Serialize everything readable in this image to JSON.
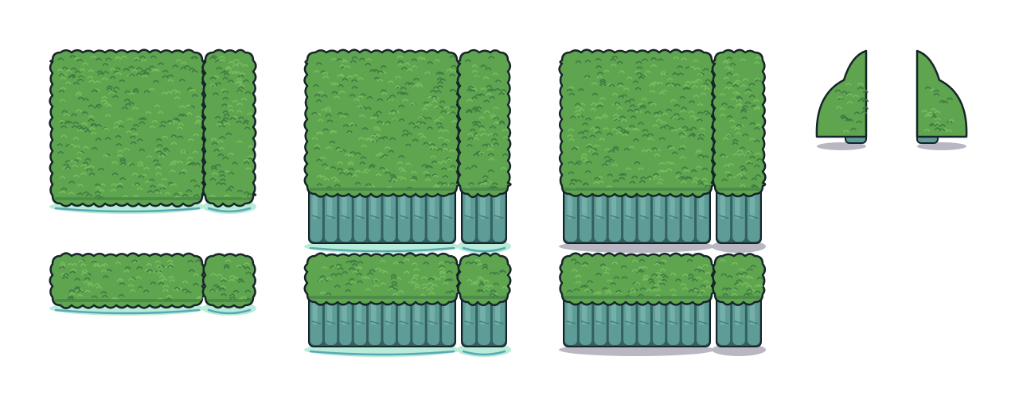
{
  "sheet": {
    "title": "",
    "background": "#ffffff"
  },
  "colors": {
    "foliage": "#5fa54f",
    "foliage_light": "#78bc5e",
    "foliage_dark": "#3f7a45",
    "outline": "#17252a",
    "cliff": "#5e9c98",
    "cliff_light": "#86c0b8",
    "cliff_dark": "#34605e",
    "water_shadow": "#b9ecd8",
    "water_edge": "#58a9b6",
    "ground_shadow": "#b9b7c2"
  },
  "groups": [
    {
      "name": "flat-bush-on-water",
      "tiles": [
        "large-block",
        "tall-strip",
        "wide-strip",
        "small-block"
      ]
    },
    {
      "name": "cliff-bush-on-water",
      "tiles": [
        "large-block",
        "tall-strip",
        "wide-strip",
        "small-block"
      ]
    },
    {
      "name": "cliff-bush-on-ground",
      "tiles": [
        "large-block",
        "tall-strip",
        "wide-strip",
        "small-block"
      ]
    },
    {
      "name": "corner-pieces",
      "tiles": [
        "left-slope",
        "right-slope"
      ]
    }
  ]
}
